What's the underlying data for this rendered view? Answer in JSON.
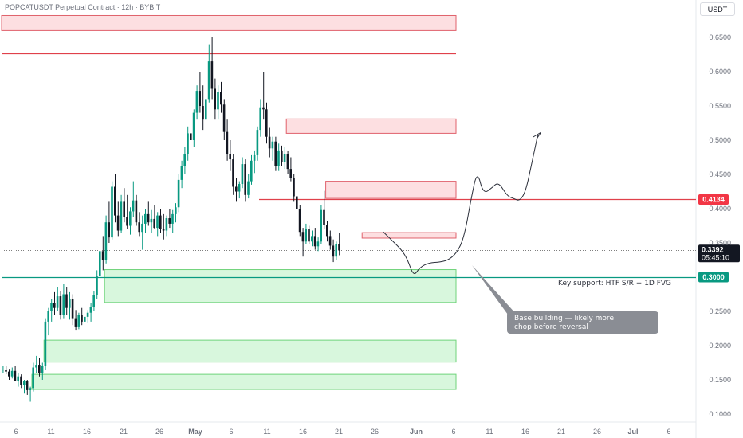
{
  "header": {
    "symbol_line": "POPCATUSDT Perpetual Contract · 12h · BYBIT",
    "currency": "USDT"
  },
  "chart_data": {
    "type": "candlestick",
    "title": "POPCATUSDT Perpetual Contract · 12h · BYBIT",
    "y_axis": {
      "ticks": [
        "0.6500",
        "0.6000",
        "0.5500",
        "0.5000",
        "0.4500",
        "0.4000",
        "0.3500",
        "0.2500",
        "0.2000",
        "0.1500",
        "0.1000"
      ],
      "tick_values": [
        0.65,
        0.6,
        0.55,
        0.5,
        0.45,
        0.4,
        0.35,
        0.25,
        0.2,
        0.15,
        0.1
      ],
      "range": [
        0.095,
        0.69
      ]
    },
    "x_axis": {
      "labels": [
        "6",
        "11",
        "16",
        "21",
        "26",
        "May",
        "6",
        "11",
        "16",
        "21",
        "26",
        "Jun",
        "6",
        "11",
        "16",
        "21",
        "26",
        "Jul",
        "6"
      ]
    },
    "price_labels": {
      "resistance": "0.4134",
      "resistance_value": 0.4134,
      "last": "0.3392",
      "last_value": 0.3392,
      "countdown": "05:45:10",
      "support": "0.3000",
      "support_value": 0.3
    },
    "annotations": {
      "support_text": "Key support: HTF S/R + 1D FVG",
      "callout_line1": "Base building — likely more",
      "callout_line2": "chop before reversal"
    },
    "zones": [
      {
        "kind": "supply",
        "x_from": 0,
        "x_to": 150,
        "low": 0.66,
        "high": 0.682
      },
      {
        "kind": "supply",
        "x_from": 94,
        "x_to": 150,
        "low": 0.51,
        "high": 0.531
      },
      {
        "kind": "supply",
        "x_from": 107,
        "x_to": 150,
        "low": 0.415,
        "high": 0.44
      },
      {
        "kind": "supply",
        "x_from": 119,
        "x_to": 150,
        "low": 0.357,
        "high": 0.365
      },
      {
        "kind": "demand",
        "x_from": 34,
        "x_to": 150,
        "low": 0.263,
        "high": 0.311
      },
      {
        "kind": "demand",
        "x_from": 14,
        "x_to": 150,
        "low": 0.176,
        "high": 0.208
      },
      {
        "kind": "demand",
        "x_from": 10,
        "x_to": 150,
        "low": 0.136,
        "high": 0.158
      }
    ],
    "lines": [
      {
        "kind": "resistance",
        "x_from": 0,
        "x_to": 150,
        "value": 0.627
      },
      {
        "kind": "resistance",
        "x_from": 85,
        "x_to": 190,
        "value": 0.4134
      },
      {
        "kind": "support",
        "x_from": 0,
        "x_to": 190,
        "value": 0.3
      },
      {
        "kind": "last",
        "x_from": 0,
        "x_to": 190,
        "value": 0.3392
      }
    ],
    "projection": [
      [
        126,
        0.366
      ],
      [
        129,
        0.353
      ],
      [
        132,
        0.34
      ],
      [
        134,
        0.326
      ],
      [
        136,
        0.301
      ],
      [
        138,
        0.314
      ],
      [
        141,
        0.321
      ],
      [
        145,
        0.322
      ],
      [
        148,
        0.326
      ],
      [
        151,
        0.34
      ],
      [
        153,
        0.365
      ],
      [
        155,
        0.415
      ],
      [
        157,
        0.456
      ],
      [
        159,
        0.421
      ],
      [
        162,
        0.431
      ],
      [
        164,
        0.439
      ],
      [
        167,
        0.418
      ],
      [
        169,
        0.415
      ],
      [
        171,
        0.411
      ],
      [
        173,
        0.425
      ],
      [
        175,
        0.466
      ],
      [
        177,
        0.508
      ]
    ],
    "candles": [
      [
        0.165,
        0.17,
        0.16,
        0.165
      ],
      [
        0.165,
        0.17,
        0.158,
        0.162
      ],
      [
        0.162,
        0.166,
        0.15,
        0.155
      ],
      [
        0.155,
        0.168,
        0.152,
        0.163
      ],
      [
        0.163,
        0.17,
        0.15,
        0.148
      ],
      [
        0.148,
        0.16,
        0.14,
        0.155
      ],
      [
        0.155,
        0.158,
        0.138,
        0.142
      ],
      [
        0.142,
        0.15,
        0.13,
        0.148
      ],
      [
        0.148,
        0.15,
        0.128,
        0.135
      ],
      [
        0.135,
        0.14,
        0.118,
        0.138
      ],
      [
        0.138,
        0.175,
        0.133,
        0.168
      ],
      [
        0.168,
        0.185,
        0.16,
        0.172
      ],
      [
        0.172,
        0.182,
        0.155,
        0.16
      ],
      [
        0.16,
        0.175,
        0.15,
        0.17
      ],
      [
        0.17,
        0.24,
        0.165,
        0.235
      ],
      [
        0.235,
        0.255,
        0.215,
        0.25
      ],
      [
        0.25,
        0.268,
        0.235,
        0.262
      ],
      [
        0.262,
        0.278,
        0.245,
        0.255
      ],
      [
        0.255,
        0.285,
        0.25,
        0.272
      ],
      [
        0.272,
        0.28,
        0.238,
        0.245
      ],
      [
        0.245,
        0.29,
        0.24,
        0.275
      ],
      [
        0.275,
        0.285,
        0.245,
        0.255
      ],
      [
        0.255,
        0.278,
        0.238,
        0.268
      ],
      [
        0.268,
        0.275,
        0.23,
        0.24
      ],
      [
        0.24,
        0.252,
        0.222,
        0.228
      ],
      [
        0.228,
        0.248,
        0.224,
        0.245
      ],
      [
        0.245,
        0.255,
        0.23,
        0.235
      ],
      [
        0.235,
        0.245,
        0.225,
        0.242
      ],
      [
        0.242,
        0.252,
        0.234,
        0.248
      ],
      [
        0.248,
        0.262,
        0.235,
        0.256
      ],
      [
        0.256,
        0.28,
        0.25,
        0.274
      ],
      [
        0.274,
        0.31,
        0.268,
        0.302
      ],
      [
        0.302,
        0.345,
        0.295,
        0.338
      ],
      [
        0.338,
        0.36,
        0.31,
        0.325
      ],
      [
        0.325,
        0.39,
        0.32,
        0.38
      ],
      [
        0.38,
        0.41,
        0.35,
        0.358
      ],
      [
        0.358,
        0.44,
        0.355,
        0.432
      ],
      [
        0.432,
        0.45,
        0.38,
        0.39
      ],
      [
        0.39,
        0.41,
        0.36,
        0.368
      ],
      [
        0.368,
        0.42,
        0.365,
        0.41
      ],
      [
        0.41,
        0.43,
        0.38,
        0.388
      ],
      [
        0.388,
        0.42,
        0.37,
        0.375
      ],
      [
        0.375,
        0.402,
        0.362,
        0.396
      ],
      [
        0.396,
        0.44,
        0.388,
        0.412
      ],
      [
        0.412,
        0.42,
        0.375,
        0.38
      ],
      [
        0.38,
        0.395,
        0.36,
        0.366
      ],
      [
        0.366,
        0.39,
        0.34,
        0.378
      ],
      [
        0.378,
        0.4,
        0.365,
        0.392
      ],
      [
        0.392,
        0.41,
        0.375,
        0.38
      ],
      [
        0.38,
        0.398,
        0.365,
        0.385
      ],
      [
        0.385,
        0.405,
        0.37,
        0.372
      ],
      [
        0.372,
        0.395,
        0.36,
        0.39
      ],
      [
        0.39,
        0.4,
        0.365,
        0.37
      ],
      [
        0.37,
        0.392,
        0.355,
        0.368
      ],
      [
        0.368,
        0.39,
        0.36,
        0.386
      ],
      [
        0.386,
        0.4,
        0.372,
        0.378
      ],
      [
        0.378,
        0.398,
        0.365,
        0.392
      ],
      [
        0.392,
        0.408,
        0.38,
        0.402
      ],
      [
        0.402,
        0.45,
        0.395,
        0.442
      ],
      [
        0.442,
        0.47,
        0.43,
        0.462
      ],
      [
        0.462,
        0.49,
        0.45,
        0.48
      ],
      [
        0.48,
        0.52,
        0.47,
        0.51
      ],
      [
        0.51,
        0.53,
        0.48,
        0.5
      ],
      [
        0.5,
        0.545,
        0.49,
        0.54
      ],
      [
        0.54,
        0.58,
        0.53,
        0.572
      ],
      [
        0.572,
        0.6,
        0.54,
        0.55
      ],
      [
        0.55,
        0.58,
        0.515,
        0.53
      ],
      [
        0.53,
        0.57,
        0.52,
        0.56
      ],
      [
        0.56,
        0.64,
        0.555,
        0.615
      ],
      [
        0.615,
        0.65,
        0.56,
        0.575
      ],
      [
        0.575,
        0.59,
        0.53,
        0.545
      ],
      [
        0.545,
        0.58,
        0.53,
        0.57
      ],
      [
        0.57,
        0.585,
        0.54,
        0.552
      ],
      [
        0.552,
        0.56,
        0.5,
        0.512
      ],
      [
        0.512,
        0.53,
        0.47,
        0.48
      ],
      [
        0.48,
        0.5,
        0.455,
        0.472
      ],
      [
        0.472,
        0.48,
        0.42,
        0.432
      ],
      [
        0.432,
        0.445,
        0.41,
        0.425
      ],
      [
        0.425,
        0.44,
        0.415,
        0.436
      ],
      [
        0.436,
        0.475,
        0.43,
        0.465
      ],
      [
        0.465,
        0.472,
        0.41,
        0.42
      ],
      [
        0.42,
        0.45,
        0.415,
        0.44
      ],
      [
        0.44,
        0.478,
        0.435,
        0.47
      ],
      [
        0.47,
        0.485,
        0.452,
        0.478
      ],
      [
        0.478,
        0.52,
        0.47,
        0.515
      ],
      [
        0.515,
        0.56,
        0.505,
        0.548
      ],
      [
        0.548,
        0.6,
        0.53,
        0.545
      ],
      [
        0.545,
        0.555,
        0.495,
        0.505
      ],
      [
        0.505,
        0.518,
        0.475,
        0.488
      ],
      [
        0.488,
        0.505,
        0.47,
        0.498
      ],
      [
        0.498,
        0.505,
        0.455,
        0.462
      ],
      [
        0.462,
        0.495,
        0.455,
        0.485
      ],
      [
        0.485,
        0.492,
        0.462,
        0.468
      ],
      [
        0.468,
        0.49,
        0.458,
        0.48
      ],
      [
        0.48,
        0.484,
        0.45,
        0.458
      ],
      [
        0.458,
        0.475,
        0.44,
        0.445
      ],
      [
        0.445,
        0.45,
        0.41,
        0.418
      ],
      [
        0.418,
        0.425,
        0.395,
        0.4
      ],
      [
        0.4,
        0.405,
        0.36,
        0.366
      ],
      [
        0.366,
        0.372,
        0.33,
        0.352
      ],
      [
        0.352,
        0.378,
        0.348,
        0.37
      ],
      [
        0.37,
        0.375,
        0.348,
        0.352
      ],
      [
        0.352,
        0.368,
        0.345,
        0.36
      ],
      [
        0.36,
        0.372,
        0.34,
        0.345
      ],
      [
        0.345,
        0.358,
        0.338,
        0.352
      ],
      [
        0.352,
        0.405,
        0.348,
        0.398
      ],
      [
        0.398,
        0.426,
        0.37,
        0.376
      ],
      [
        0.376,
        0.382,
        0.352,
        0.36
      ],
      [
        0.36,
        0.368,
        0.34,
        0.346
      ],
      [
        0.346,
        0.355,
        0.322,
        0.33
      ],
      [
        0.33,
        0.352,
        0.325,
        0.348
      ],
      [
        0.348,
        0.365,
        0.332,
        0.339
      ]
    ]
  }
}
